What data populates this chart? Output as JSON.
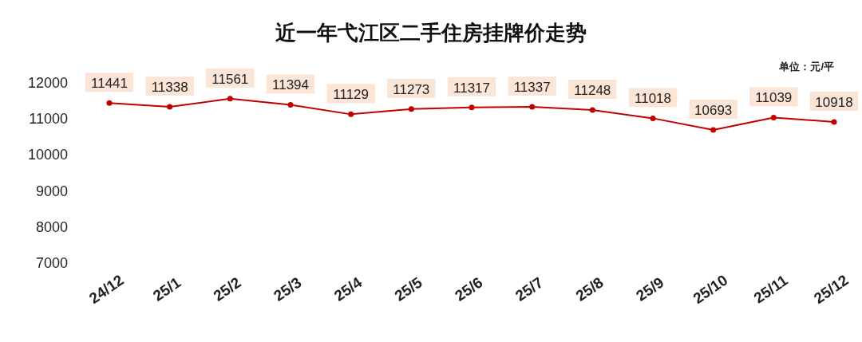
{
  "chart_data": {
    "type": "line",
    "title": "近一年弋江区二手住房挂牌价走势",
    "annotations": [
      "单位：元/平"
    ],
    "categories": [
      "24/12",
      "25/1",
      "25/2",
      "25/3",
      "25/4",
      "25/5",
      "25/6",
      "25/7",
      "25/8",
      "25/9",
      "25/10",
      "25/11",
      "25/12"
    ],
    "series": [
      {
        "color": "#c00000",
        "values": [
          11441,
          11338,
          11561,
          11394,
          11129,
          11273,
          11317,
          11337,
          11248,
          11018,
          10693,
          11039,
          10918
        ]
      }
    ],
    "ylim": [
      7000,
      12000
    ],
    "yticks": [
      7000,
      8000,
      9000,
      10000,
      11000,
      12000
    ],
    "data_labels": true,
    "marker": "circle",
    "line_style": "solid"
  }
}
